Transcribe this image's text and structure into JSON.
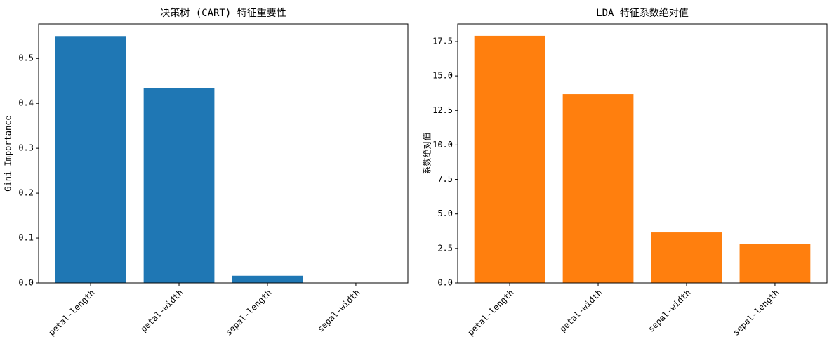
{
  "chart_data": [
    {
      "type": "bar",
      "title": "决策树 (CART) 特征重要性",
      "y_label": "Gini Importance",
      "categories": [
        "petal-length",
        "petal-width",
        "sepal-length",
        "sepal-width"
      ],
      "values": [
        0.55,
        0.434,
        0.016,
        0.0
      ],
      "color": "#1f77b4",
      "ylim": [
        0,
        0.577
      ],
      "yticks": [
        {
          "value": 0,
          "label": "0.0"
        },
        0.1,
        0.2,
        0.3,
        0.4,
        0.5
      ]
    },
    {
      "type": "bar",
      "title": "LDA 特征系数绝对值",
      "y_label": "系数绝对值",
      "categories": [
        "petal-length",
        "petal-width",
        "sepal-width",
        "sepal-length"
      ],
      "values": [
        17.91,
        13.68,
        3.66,
        2.8
      ],
      "color": "#ff7f0e",
      "ylim": [
        0,
        18.77
      ],
      "yticks": [
        {
          "value": 0,
          "label": "0.0"
        },
        2.5,
        {
          "value": 5,
          "label": "5.0"
        },
        7.5,
        {
          "value": 10,
          "label": "10.0"
        },
        12.5,
        {
          "value": 15,
          "label": "15.0"
        },
        17.5
      ]
    }
  ]
}
